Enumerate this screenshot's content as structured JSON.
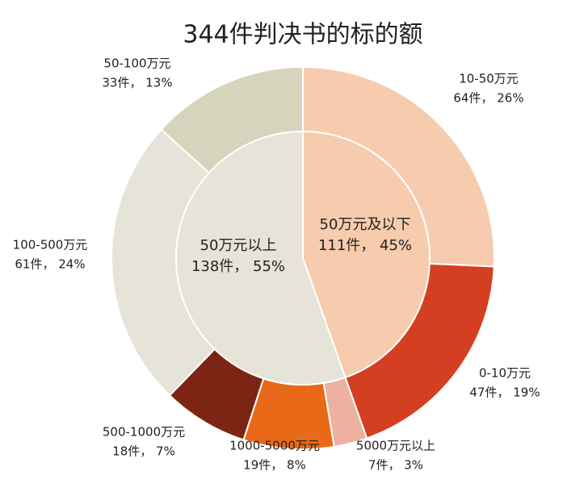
{
  "chart_data": {
    "type": "pie",
    "title": "344件判决书的标的额",
    "rings": [
      {
        "categories": [
          "50万元及以下",
          "50万元以上"
        ],
        "values": [
          111,
          138
        ],
        "value_labels": [
          "111件， 45%",
          "138件， 55%"
        ],
        "colors": [
          "#f7cbad",
          "#e6e4d8"
        ]
      },
      {
        "categories": [
          "10-50万元",
          "0-10万元",
          "5000万元以上",
          "1000-5000万元",
          "500-1000万元",
          "100-500万元",
          "50-100万元"
        ],
        "values": [
          64,
          47,
          7,
          19,
          18,
          61,
          33
        ],
        "value_labels": [
          "64件， 26%",
          "47件， 19%",
          "7件， 3%",
          "19件， 8%",
          "18件， 7%",
          "61件， 24%",
          "33件， 13%"
        ],
        "colors": [
          "#f7cbad",
          "#d33f20",
          "#eeb0a0",
          "#e86a18",
          "#7d2514",
          "#e6e4d8",
          "#d6d4bc"
        ]
      }
    ]
  }
}
